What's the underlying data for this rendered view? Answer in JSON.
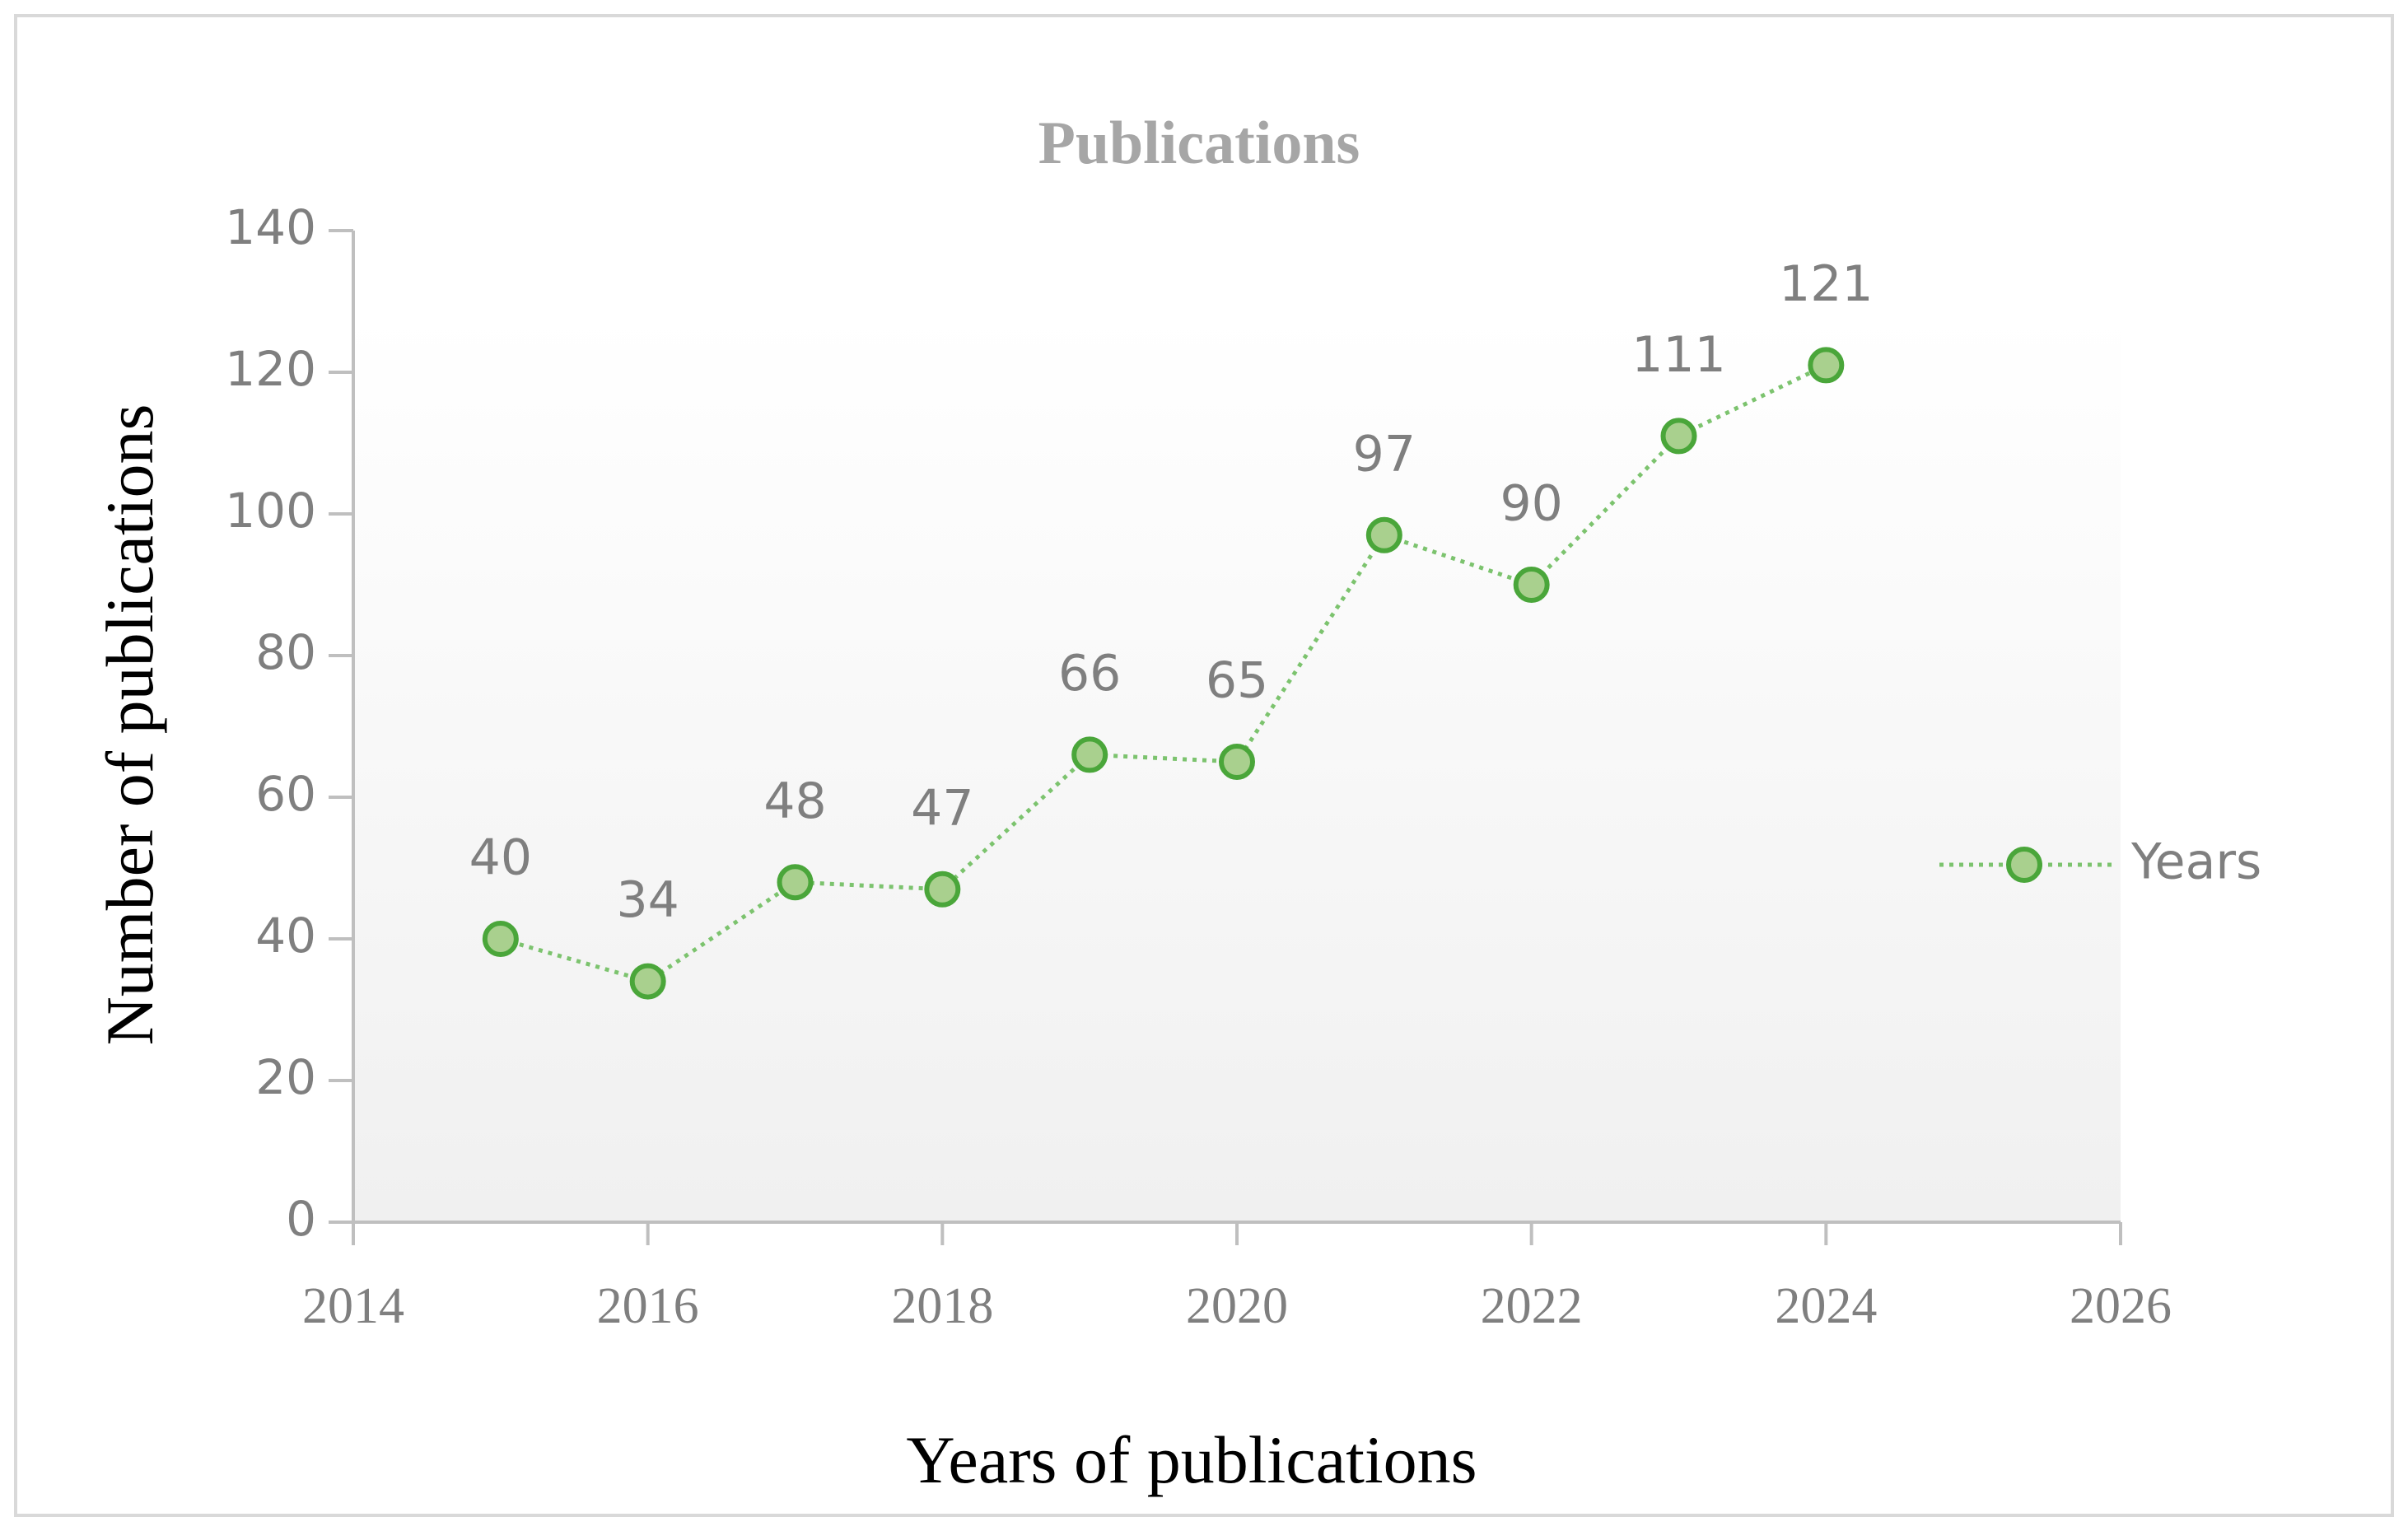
{
  "chart_data": {
    "type": "line",
    "title": "Publications",
    "x_label": "Years of publications",
    "y_label": "Number of publications",
    "x": [
      2015,
      2016,
      2017,
      2018,
      2019,
      2020,
      2021,
      2022,
      2023,
      2024
    ],
    "series": [
      {
        "name": "Years",
        "color": "#4aa63a",
        "values": [
          40,
          34,
          48,
          47,
          66,
          65,
          97,
          90,
          111,
          121
        ]
      }
    ],
    "xlim": [
      2014,
      2026
    ],
    "xticks": [
      2014,
      2016,
      2018,
      2020,
      2022,
      2024,
      2026
    ],
    "ylim": [
      0,
      140
    ],
    "yticks": [
      0,
      20,
      40,
      60,
      80,
      100,
      120,
      140
    ],
    "legend": "right"
  }
}
